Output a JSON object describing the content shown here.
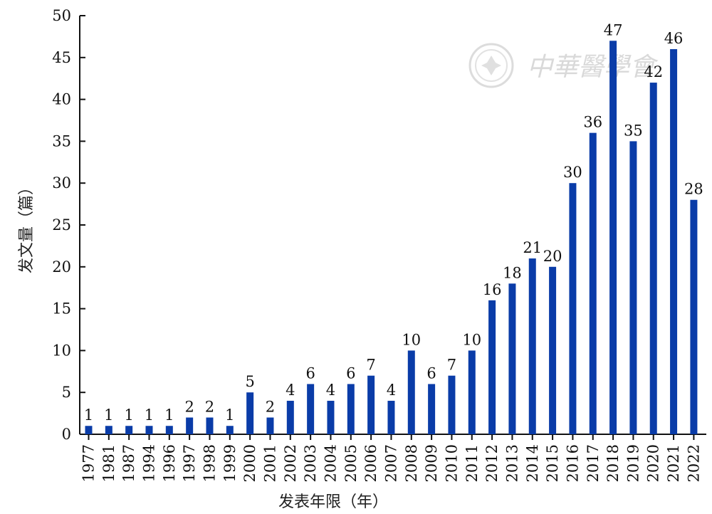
{
  "chart_data": {
    "type": "bar",
    "categories": [
      "1977",
      "1981",
      "1987",
      "1994",
      "1996",
      "1997",
      "1998",
      "1999",
      "2000",
      "2001",
      "2002",
      "2003",
      "2004",
      "2005",
      "2006",
      "2007",
      "2008",
      "2009",
      "2010",
      "2011",
      "2012",
      "2013",
      "2014",
      "2015",
      "2016",
      "2017",
      "2018",
      "2019",
      "2020",
      "2021",
      "2022"
    ],
    "values": [
      1,
      1,
      1,
      1,
      1,
      2,
      2,
      1,
      5,
      2,
      4,
      6,
      4,
      6,
      7,
      4,
      10,
      6,
      7,
      10,
      16,
      18,
      21,
      20,
      30,
      36,
      47,
      35,
      42,
      46,
      28
    ],
    "title": "",
    "xlabel": "发表年限（年）",
    "ylabel": "发文量（篇）",
    "ylim": [
      0,
      50
    ],
    "yticks": [
      0,
      5,
      10,
      15,
      20,
      25,
      30,
      35,
      40,
      45,
      50
    ],
    "grid": false,
    "legend": "none",
    "bar_color": "#0a3ca8",
    "data_labels": true
  },
  "watermark": {
    "text": "中華醫學會",
    "color": "#d9d9d9"
  }
}
